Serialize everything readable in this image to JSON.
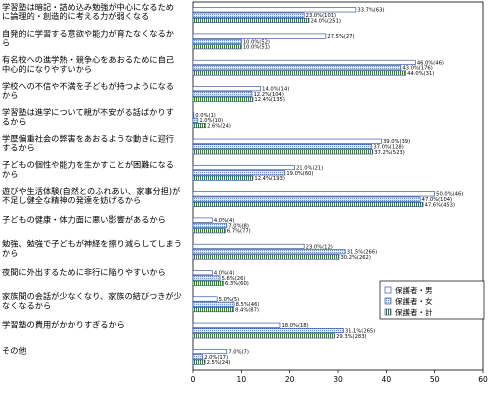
{
  "chart_data": {
    "type": "bar",
    "orientation": "horizontal",
    "title": "",
    "xlabel": "",
    "ylabel": "",
    "xlim": [
      0,
      60
    ],
    "xticks": [
      "0",
      "10",
      "20",
      "30",
      "40",
      "50",
      "60"
    ],
    "grid": false,
    "legend_position": "right",
    "categories": [
      "学習塾は暗記・詰め込み勉強が中心になるために論理的・創造的に考える力が弱くなる",
      "自発的に学習する意欲や能力が育たなくなるから",
      "有名校への進学熱・競争心をあおるために自己中心的になりやすいから",
      "学校への不信や不満を子どもが持つようになるから",
      "学習塾は進学について親が不安がる話ばかりするから",
      "学歴偏重社会の弊害をあおるような動きに迎行するから",
      "子どもの個性や能力を生かすことが困難になるから",
      "遊びや生活体験(自然とのふれあい、家事分担)が不足し健全な精神の発達を妨げるから",
      "子どもの健康・体力面に悪い影響があるから",
      "勉強、勉強で子どもが神経を擦り減らしてしまうから",
      "夜間に外出するために非行に陥りやすいから",
      "家族間の会話が少なくなり、家族の結びつきが少なくなるから",
      "学習塾の費用がかかりすぎるから",
      "その他"
    ],
    "series": [
      {
        "name": "保護者・男",
        "color": "#ffffff",
        "values": [
          33.7,
          27.5,
          46.0,
          14.0,
          0.0,
          39.0,
          21.0,
          50.0,
          4.0,
          23.0,
          4.0,
          5.0,
          18.0,
          7.0
        ],
        "labels": [
          "33.7%(63)",
          "27.5%(27)",
          "46.0%(46)",
          "14.0%(14)",
          "0.0%(1)",
          "39.0%(39)",
          "21.0%(21)",
          "50.0%(46)",
          "4.0%(4)",
          "23.0%(12)",
          "4.0%(4)",
          "5.0%(5)",
          "18.0%(18)",
          "7.0%(7)"
        ]
      },
      {
        "name": "保護者・女",
        "color": "#cfe4f8",
        "values": [
          23.0,
          10.0,
          43.0,
          12.2,
          1.0,
          37.0,
          19.0,
          47.0,
          7.0,
          31.5,
          5.6,
          8.5,
          31.1,
          2.0
        ],
        "labels": [
          "23.0%(101)",
          "10.0%(52)",
          "43.0%(176)",
          "12.2%(104)",
          "1.0%(10)",
          "37.0%(128)",
          "19.0%(60)",
          "47.0%(104)",
          "7.0%(8)",
          "31.5%(266)",
          "5.6%(26)",
          "8.5%(46)",
          "31.1%(265)",
          "2.0%(17)"
        ]
      },
      {
        "name": "保護者・計",
        "color": "#3c7a3c",
        "values": [
          24.0,
          10.0,
          44.0,
          12.4,
          2.6,
          37.2,
          12.4,
          47.6,
          6.7,
          30.2,
          6.3,
          8.4,
          29.3,
          2.5
        ],
        "labels": [
          "24.0%(251)",
          "10.0%(51)",
          "44.0%(31)",
          "12.4%(135)",
          "2.6%(24)",
          "37.2%(523)",
          "12.4%(193)",
          "47.6%(453)",
          "6.7%(77)",
          "30.2%(262)",
          "6.3%(60)",
          "8.4%(87)",
          "29.3%(283)",
          "2.5%(24)"
        ]
      }
    ]
  }
}
